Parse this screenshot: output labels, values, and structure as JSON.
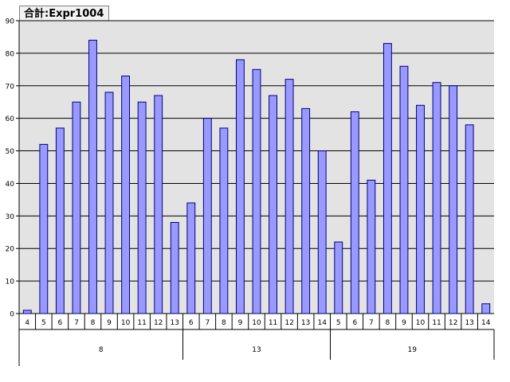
{
  "field_button": {
    "label": "合計:Expr1004"
  },
  "colors": {
    "plot_background": "#e3e3e3",
    "bar_fill": "#9999ff",
    "bar_stroke": "#000080",
    "gridline": "#000000",
    "axis": "#000000"
  },
  "chart_data": {
    "type": "bar",
    "ylim": [
      0,
      90
    ],
    "ytick_step": 10,
    "grid": true,
    "legend": "none",
    "groups": [
      {
        "label": "8",
        "categories": [
          "4",
          "5",
          "6",
          "7",
          "8",
          "9",
          "10",
          "11",
          "12",
          "13"
        ],
        "values": [
          1,
          52,
          57,
          65,
          84,
          68,
          73,
          65,
          67,
          28
        ]
      },
      {
        "label": "13",
        "categories": [
          "6",
          "7",
          "8",
          "9",
          "10",
          "11",
          "12",
          "13",
          "14"
        ],
        "values": [
          34,
          60,
          57,
          78,
          75,
          67,
          72,
          63,
          50
        ]
      },
      {
        "label": "19",
        "categories": [
          "5",
          "6",
          "7",
          "8",
          "9",
          "10",
          "11",
          "12",
          "13",
          "14"
        ],
        "values": [
          22,
          62,
          41,
          83,
          76,
          64,
          71,
          70,
          58,
          3
        ]
      }
    ]
  }
}
